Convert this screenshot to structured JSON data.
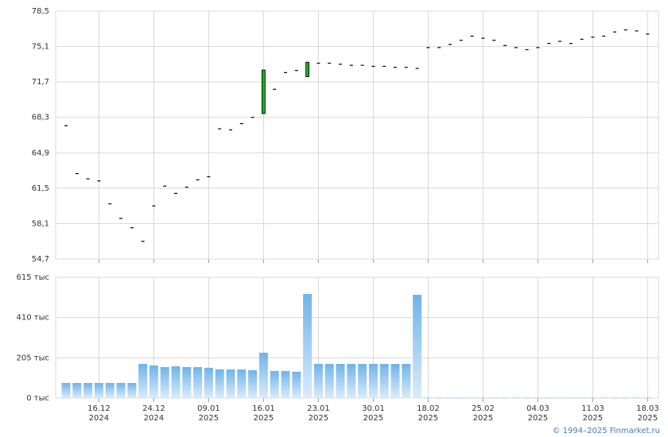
{
  "chart_data": [
    {
      "type": "candlestick",
      "categories": [
        null,
        null,
        null,
        "16.12",
        null,
        null,
        null,
        null,
        "24.12",
        null,
        null,
        null,
        null,
        "09.01",
        null,
        null,
        null,
        null,
        "16.01",
        null,
        null,
        null,
        null,
        "23.01",
        null,
        null,
        null,
        null,
        "30.01",
        null,
        null,
        null,
        null,
        "18.02",
        null,
        null,
        null,
        null,
        "25.02",
        null,
        null,
        null,
        null,
        "04.03",
        null,
        null,
        null,
        null,
        "11.03",
        null,
        null,
        null,
        null,
        "18.03"
      ],
      "category_years": [
        null,
        null,
        null,
        "2024",
        null,
        null,
        null,
        null,
        "2024",
        null,
        null,
        null,
        null,
        "2025",
        null,
        null,
        null,
        null,
        "2025",
        null,
        null,
        null,
        null,
        "2025",
        null,
        null,
        null,
        null,
        "2025",
        null,
        null,
        null,
        null,
        "2025",
        null,
        null,
        null,
        null,
        "2025",
        null,
        null,
        null,
        null,
        "2025",
        null,
        null,
        null,
        null,
        "2025",
        null,
        null,
        null,
        null,
        "2025"
      ],
      "open": [
        67.5,
        62.9,
        62.4,
        62.2,
        60.0,
        58.6,
        57.7,
        56.4,
        59.8,
        61.7,
        61.0,
        61.6,
        62.3,
        62.6,
        67.2,
        67.1,
        67.7,
        68.3,
        68.66,
        71.0,
        72.6,
        72.8,
        72.2,
        73.5,
        73.5,
        73.4,
        73.3,
        73.3,
        73.2,
        73.2,
        73.1,
        73.1,
        73.0,
        75.0,
        75.0,
        75.3,
        75.7,
        76.1,
        75.9,
        75.7,
        75.2,
        75.0,
        74.8,
        75.0,
        75.4,
        75.6,
        75.4,
        75.8,
        76.0,
        76.1,
        76.5,
        76.7,
        76.6,
        76.3
      ],
      "close": [
        67.5,
        62.9,
        62.4,
        62.2,
        60.0,
        58.6,
        57.7,
        56.4,
        59.8,
        61.7,
        61.0,
        61.6,
        62.3,
        62.6,
        67.2,
        67.1,
        67.7,
        68.3,
        72.85,
        71.0,
        72.6,
        72.8,
        73.6,
        73.5,
        73.5,
        73.4,
        73.3,
        73.3,
        73.2,
        73.2,
        73.1,
        73.1,
        73.0,
        75.0,
        75.0,
        75.3,
        75.7,
        76.1,
        75.9,
        75.7,
        75.2,
        75.0,
        74.8,
        75.0,
        75.4,
        75.6,
        75.4,
        75.8,
        76.0,
        76.1,
        76.5,
        76.7,
        76.6,
        76.3
      ],
      "up_color": "#22aa22",
      "ylim": [
        54.7,
        78.5
      ],
      "yticks": [
        {
          "value": 54.7,
          "label": "54,7"
        },
        {
          "value": 58.1,
          "label": "58,1"
        },
        {
          "value": 61.5,
          "label": "61,5"
        },
        {
          "value": 64.9,
          "label": "64,9"
        },
        {
          "value": 68.3,
          "label": "68,3"
        },
        {
          "value": 71.7,
          "label": "71,7"
        },
        {
          "value": 75.1,
          "label": "75,1"
        },
        {
          "value": 78.5,
          "label": "78,5"
        }
      ],
      "grid": true
    },
    {
      "type": "bar",
      "values": [
        77,
        77,
        77,
        77,
        77,
        77,
        77,
        174,
        166,
        158,
        162,
        158,
        158,
        154,
        146,
        146,
        146,
        142,
        231,
        138,
        138,
        134,
        530,
        174,
        174,
        174,
        174,
        174,
        174,
        174,
        174,
        174,
        526,
        2,
        2,
        2,
        2,
        2,
        2,
        2,
        2,
        2,
        2,
        2,
        2,
        2,
        2,
        2,
        2,
        2,
        2,
        2,
        2,
        2
      ],
      "color": "#72b6ec",
      "ylim": [
        0,
        615
      ],
      "yticks": [
        {
          "value": 0,
          "label": "0 тыс"
        },
        {
          "value": 205,
          "label": "205 тыс"
        },
        {
          "value": 410,
          "label": "410 тыс"
        },
        {
          "value": 615,
          "label": "615 тыс"
        }
      ],
      "grid": true
    }
  ],
  "footer": "© 1994–2025 Finmarket.ru"
}
